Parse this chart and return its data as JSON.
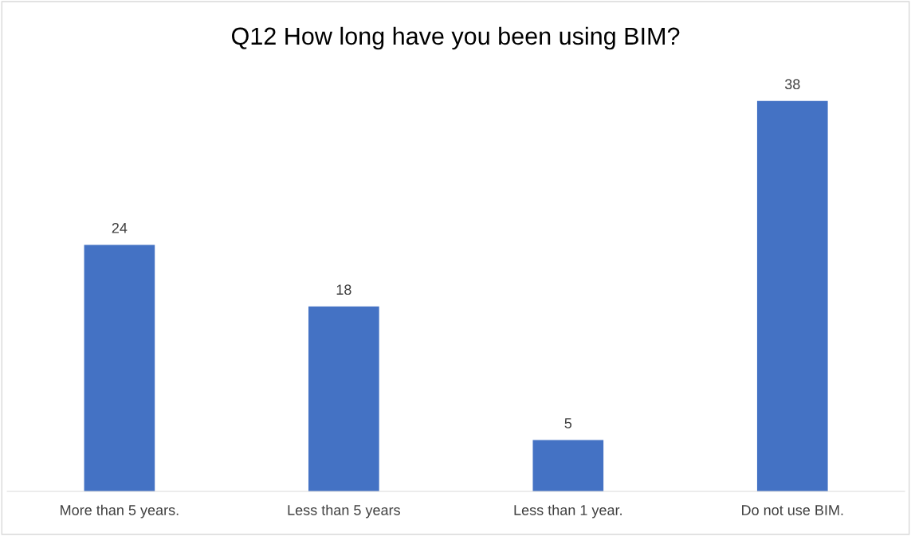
{
  "chart_data": {
    "type": "bar",
    "title": "Q12 How long have you been using BIM?",
    "categories": [
      "More than 5 years.",
      "Less than 5 years",
      "Less than 1 year.",
      "Do not use BIM."
    ],
    "values": [
      24,
      18,
      5,
      38
    ],
    "color": "#4472c4",
    "data_labels": true
  }
}
